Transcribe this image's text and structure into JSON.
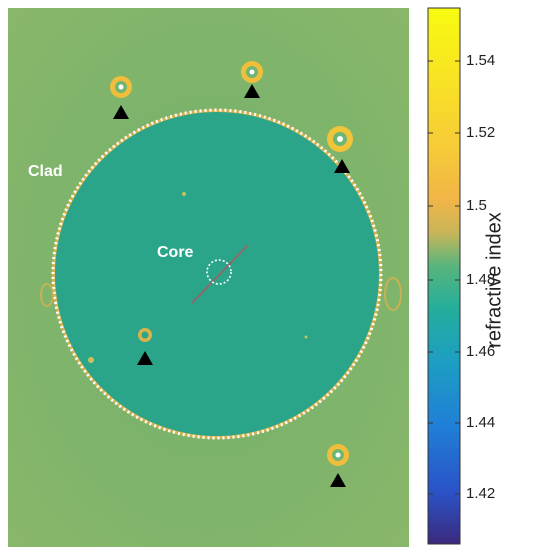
{
  "image": {
    "labels": {
      "clad": "Clad",
      "core": "Core"
    },
    "colors": {
      "background": "#7bb36c",
      "clad_fill": "#2aa58b",
      "ring_fill": "#e0b84a"
    }
  },
  "colorbar": {
    "title": "refractive index",
    "ticks": [
      "1.54",
      "1.52",
      "1.5",
      "1.48",
      "1.46",
      "1.44",
      "1.42"
    ],
    "range": [
      1.41,
      1.555
    ]
  }
}
